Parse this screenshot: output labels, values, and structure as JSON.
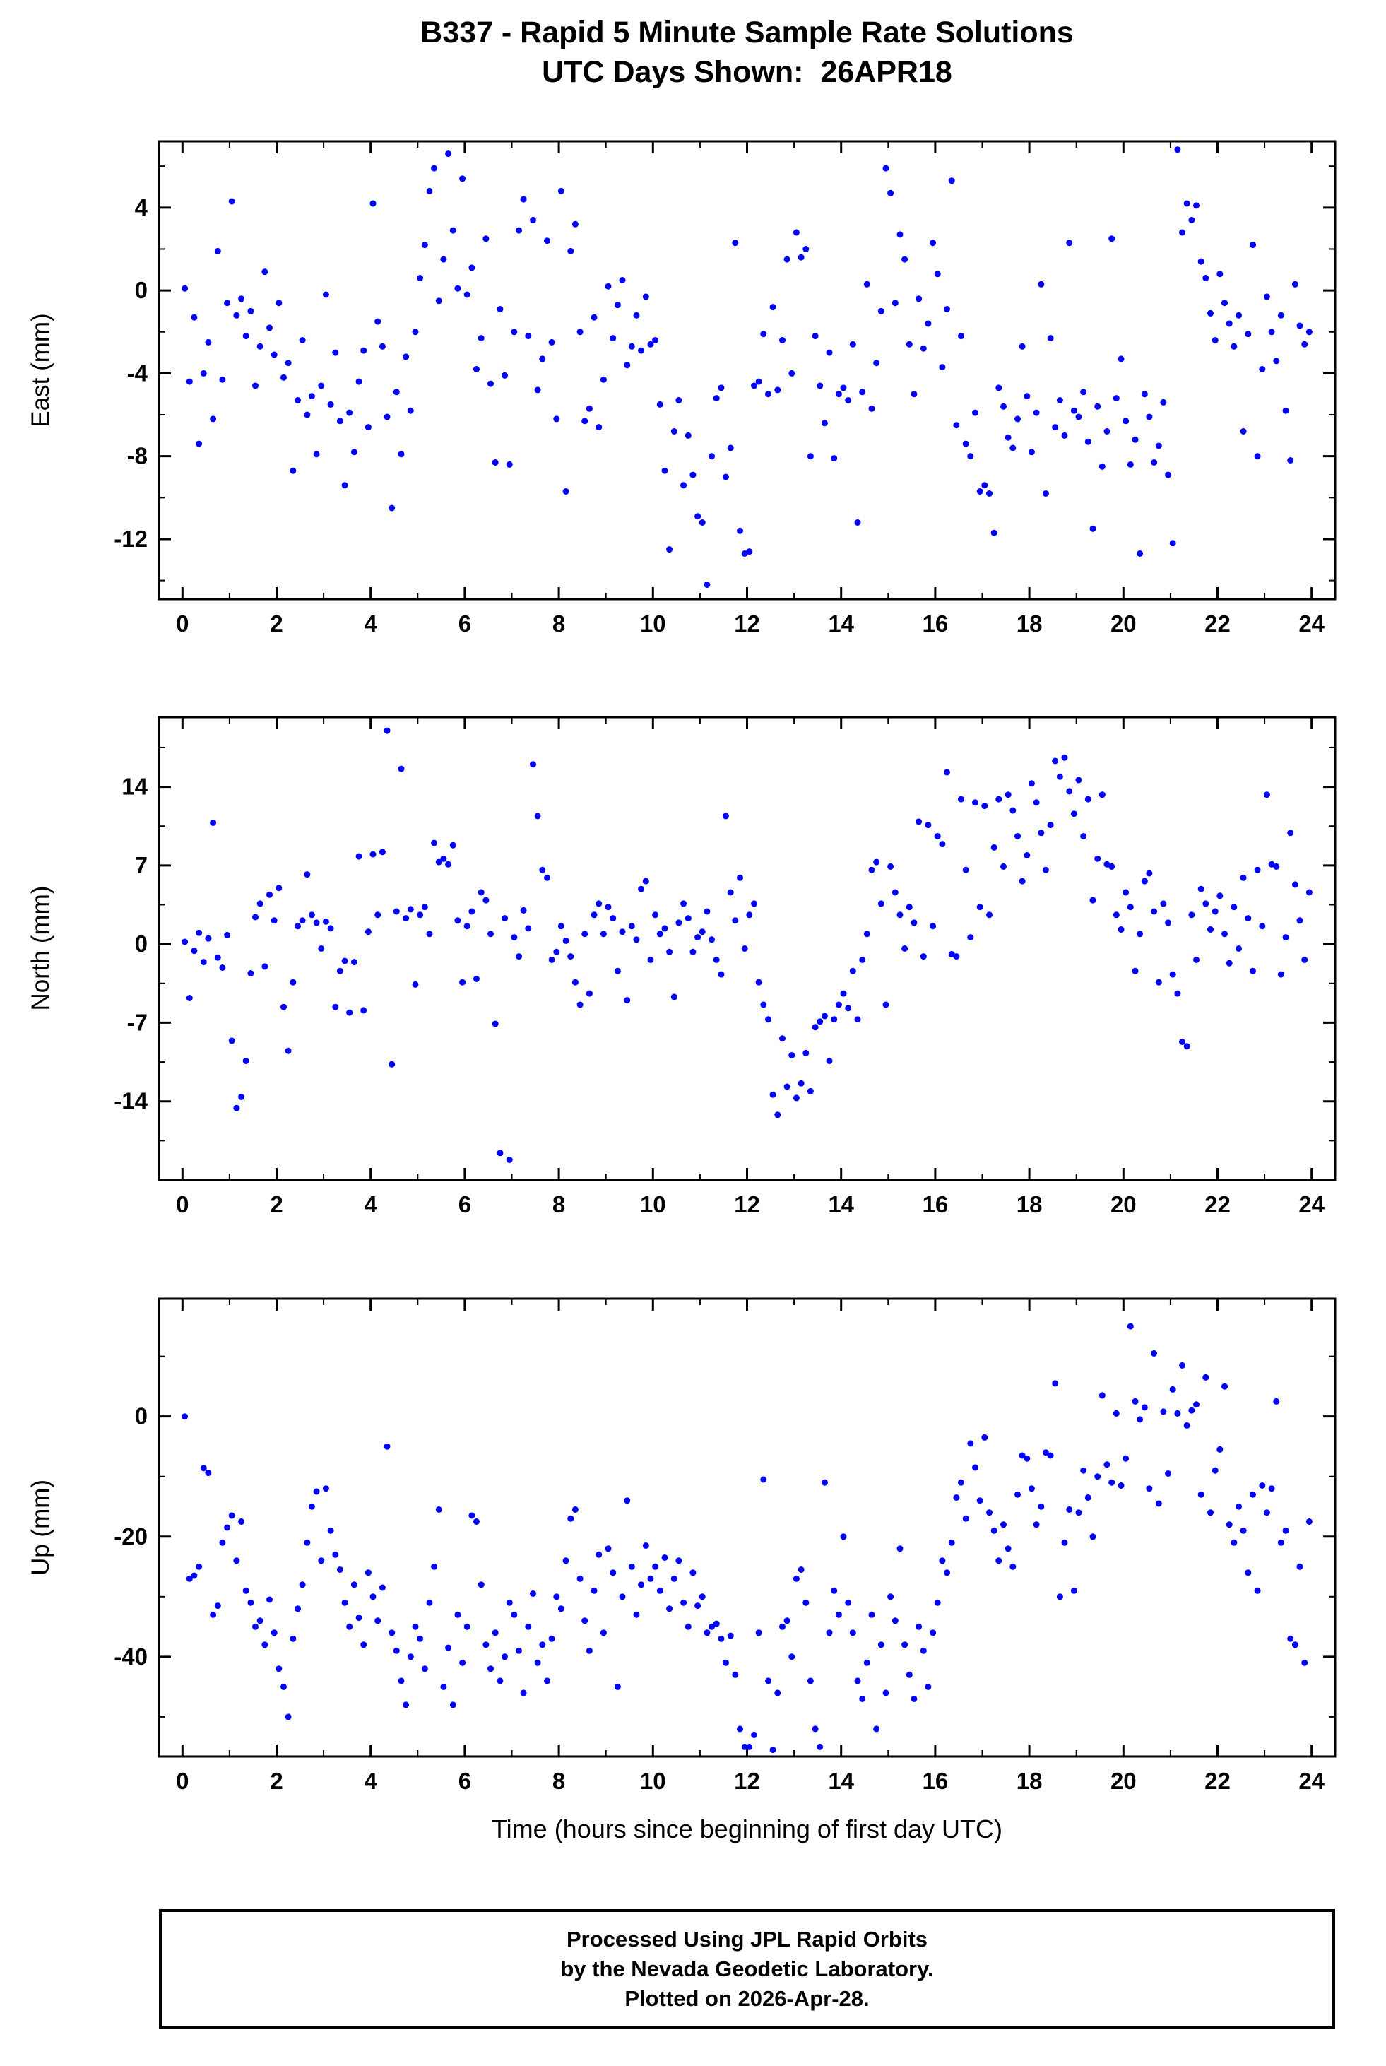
{
  "title": "B337 - Rapid 5 Minute Sample Rate Solutions",
  "subtitle": "UTC Days Shown:  26APR18",
  "footer": {
    "lines": [
      "Processed Using JPL Rapid Orbits",
      "by the Nevada Geodetic Laboratory.",
      "Plotted on 2026-Apr-28."
    ]
  },
  "chart_data": {
    "type": "scatter",
    "title": "B337 - Rapid 5 Minute Sample Rate Solutions",
    "subtitle": "UTC Days Shown:  26APR18",
    "xlabel": "Time (hours since beginning of first day UTC)",
    "xlim": [
      -0.5,
      24.5
    ],
    "xticks": [
      0,
      2,
      4,
      6,
      8,
      10,
      12,
      14,
      16,
      18,
      20,
      22,
      24
    ],
    "x_minor": 1,
    "grid": false,
    "legend": "none",
    "point_color": "#0000ff",
    "frame_color": "#000000",
    "panels": [
      {
        "ylabel": "East (mm)",
        "ylim": [
          -14.9,
          7.2
        ],
        "yticks": [
          4,
          0,
          -4,
          -8,
          -12
        ],
        "minor": 2
      },
      {
        "ylabel": "North (mm)",
        "ylim": [
          -21.0,
          20.2
        ],
        "yticks": [
          14,
          7,
          0,
          -7,
          -14
        ],
        "minor": 3.5
      },
      {
        "ylabel": "Up (mm)",
        "ylim": [
          -56.6,
          19.6
        ],
        "yticks": [
          0,
          -20,
          -40
        ],
        "minor": 10
      }
    ],
    "points_format": [
      "time_hours",
      "east_mm",
      "north_mm",
      "up_mm"
    ],
    "points": [
      [
        0.05,
        0.1,
        0.2,
        0.0
      ],
      [
        0.15,
        -4.4,
        -4.8,
        -27
      ],
      [
        0.25,
        -1.3,
        -0.6,
        -26.5
      ],
      [
        0.35,
        -7.4,
        1.0,
        -25
      ],
      [
        0.45,
        -4.0,
        -1.6,
        -8.6
      ],
      [
        0.55,
        -2.5,
        0.5,
        -9.4
      ],
      [
        0.65,
        -6.2,
        10.8,
        -33
      ],
      [
        0.75,
        1.9,
        -1.2,
        -31.5
      ],
      [
        0.85,
        -4.3,
        -2.1,
        -21
      ],
      [
        0.95,
        -0.6,
        0.8,
        -18.5
      ],
      [
        1.05,
        4.3,
        -8.6,
        -16.5
      ],
      [
        1.15,
        -1.2,
        -14.6,
        -24
      ],
      [
        1.25,
        -0.4,
        -13.6,
        -17.5
      ],
      [
        1.35,
        -2.2,
        -10.4,
        -29
      ],
      [
        1.45,
        -1.0,
        -2.6,
        -31
      ],
      [
        1.55,
        -4.6,
        2.4,
        -35
      ],
      [
        1.65,
        -2.7,
        3.6,
        -34
      ],
      [
        1.75,
        0.9,
        -2.0,
        -38
      ],
      [
        1.85,
        -1.8,
        4.4,
        -30.5
      ],
      [
        1.95,
        -3.1,
        2.1,
        -36
      ],
      [
        2.05,
        -0.6,
        5.0,
        -42
      ],
      [
        2.15,
        -4.2,
        -5.6,
        -45
      ],
      [
        2.25,
        -3.5,
        -9.5,
        -50
      ],
      [
        2.35,
        -8.7,
        -3.4,
        -37
      ],
      [
        2.45,
        -5.3,
        1.6,
        -32
      ],
      [
        2.55,
        -2.4,
        2.1,
        -28
      ],
      [
        2.65,
        -6.0,
        6.2,
        -21
      ],
      [
        2.75,
        -5.1,
        2.6,
        -15
      ],
      [
        2.85,
        -7.9,
        1.9,
        -12.5
      ],
      [
        2.95,
        -4.6,
        -0.4,
        -24
      ],
      [
        3.05,
        -0.2,
        2.0,
        -12
      ],
      [
        3.15,
        -5.5,
        1.4,
        -19
      ],
      [
        3.25,
        -3.0,
        -5.6,
        -23
      ],
      [
        3.35,
        -6.3,
        -2.4,
        -25.5
      ],
      [
        3.45,
        -9.4,
        -1.5,
        -31
      ],
      [
        3.55,
        -5.9,
        -6.1,
        -35
      ],
      [
        3.65,
        -7.8,
        -1.6,
        -28
      ],
      [
        3.75,
        -4.4,
        7.8,
        -33.5
      ],
      [
        3.85,
        -2.9,
        -5.9,
        -38
      ],
      [
        3.95,
        -6.6,
        1.1,
        -26
      ],
      [
        4.05,
        4.2,
        8.0,
        -30
      ],
      [
        4.15,
        -1.5,
        2.6,
        -34
      ],
      [
        4.25,
        -2.7,
        8.2,
        -28.5
      ],
      [
        4.35,
        -6.1,
        19.0,
        -5
      ],
      [
        4.45,
        -10.5,
        -10.7,
        -36
      ],
      [
        4.55,
        -4.9,
        2.9,
        -39
      ],
      [
        4.65,
        -7.9,
        15.6,
        -44
      ],
      [
        4.75,
        -3.2,
        2.3,
        -48
      ],
      [
        4.85,
        -5.8,
        3.1,
        -40
      ],
      [
        4.95,
        -2.0,
        -3.6,
        -35
      ],
      [
        5.05,
        0.6,
        2.6,
        -37
      ],
      [
        5.15,
        2.2,
        3.3,
        -42
      ],
      [
        5.25,
        4.8,
        0.9,
        -31
      ],
      [
        5.35,
        5.9,
        9.0,
        -25
      ],
      [
        5.45,
        -0.5,
        7.3,
        -15.5
      ],
      [
        5.55,
        1.5,
        7.6,
        -45
      ],
      [
        5.65,
        6.6,
        7.1,
        -38.5
      ],
      [
        5.75,
        2.9,
        8.8,
        -48
      ],
      [
        5.85,
        0.1,
        2.1,
        -33
      ],
      [
        5.95,
        5.4,
        -3.4,
        -41
      ],
      [
        6.05,
        -0.2,
        1.6,
        -35
      ],
      [
        6.15,
        1.1,
        2.9,
        -16.5
      ],
      [
        6.25,
        -3.8,
        -3.1,
        -17.5
      ],
      [
        6.35,
        -2.3,
        4.6,
        -28
      ],
      [
        6.45,
        2.5,
        3.9,
        -38
      ],
      [
        6.55,
        -4.5,
        0.9,
        -42
      ],
      [
        6.65,
        -8.3,
        -7.1,
        -36
      ],
      [
        6.75,
        -0.9,
        -18.6,
        -44
      ],
      [
        6.85,
        -4.1,
        2.3,
        -40
      ],
      [
        6.95,
        -8.4,
        -19.2,
        -31
      ],
      [
        7.05,
        -2.0,
        0.6,
        -33
      ],
      [
        7.15,
        2.9,
        -1.1,
        -39
      ],
      [
        7.25,
        4.4,
        3.0,
        -46
      ],
      [
        7.35,
        -2.2,
        1.4,
        -35
      ],
      [
        7.45,
        3.4,
        16.0,
        -29.5
      ],
      [
        7.55,
        -4.8,
        11.4,
        -41
      ],
      [
        7.65,
        -3.3,
        6.6,
        -38
      ],
      [
        7.75,
        2.4,
        5.9,
        -44
      ],
      [
        7.85,
        -2.5,
        -1.4,
        -37
      ],
      [
        7.95,
        -6.2,
        -0.7,
        -30
      ],
      [
        8.05,
        4.8,
        1.6,
        -32
      ],
      [
        8.15,
        -9.7,
        0.3,
        -24
      ],
      [
        8.25,
        1.9,
        -1.1,
        -17
      ],
      [
        8.35,
        3.2,
        -3.4,
        -15.5
      ],
      [
        8.45,
        -2.0,
        -5.4,
        -27
      ],
      [
        8.55,
        -6.3,
        0.9,
        -34
      ],
      [
        8.65,
        -5.7,
        -4.4,
        -39
      ],
      [
        8.75,
        -1.3,
        2.6,
        -29
      ],
      [
        8.85,
        -6.6,
        3.6,
        -23
      ],
      [
        8.95,
        -4.3,
        0.9,
        -36
      ],
      [
        9.05,
        0.2,
        3.3,
        -22
      ],
      [
        9.15,
        -2.3,
        2.3,
        -26
      ],
      [
        9.25,
        -0.7,
        -2.4,
        -45
      ],
      [
        9.35,
        0.5,
        1.1,
        -30
      ],
      [
        9.45,
        -3.6,
        -5.0,
        -14
      ],
      [
        9.55,
        -2.7,
        1.6,
        -25
      ],
      [
        9.65,
        -1.2,
        0.4,
        -33
      ],
      [
        9.75,
        -2.9,
        4.9,
        -28
      ],
      [
        9.85,
        -0.3,
        5.6,
        -21.5
      ],
      [
        9.95,
        -2.6,
        -1.4,
        -27
      ],
      [
        10.05,
        -2.4,
        2.6,
        -25
      ],
      [
        10.15,
        -5.5,
        0.9,
        -29
      ],
      [
        10.25,
        -8.7,
        1.4,
        -23.5
      ],
      [
        10.35,
        -12.5,
        -0.7,
        -32
      ],
      [
        10.45,
        -6.8,
        -4.7,
        -27
      ],
      [
        10.55,
        -5.3,
        1.9,
        -24
      ],
      [
        10.65,
        -9.4,
        3.6,
        -31
      ],
      [
        10.75,
        -7.0,
        2.3,
        -35
      ],
      [
        10.85,
        -8.9,
        -0.7,
        -26
      ],
      [
        10.95,
        -10.9,
        0.6,
        -31.5
      ],
      [
        11.05,
        -11.2,
        1.1,
        -30
      ],
      [
        11.15,
        -14.2,
        2.9,
        -36
      ],
      [
        11.25,
        -8.0,
        0.4,
        -35
      ],
      [
        11.35,
        -5.2,
        -1.4,
        -34.5
      ],
      [
        11.45,
        -4.7,
        -2.7,
        -37
      ],
      [
        11.55,
        -9.0,
        11.4,
        -41
      ],
      [
        11.65,
        -7.6,
        4.6,
        -36.5
      ],
      [
        11.75,
        2.3,
        2.1,
        -43
      ],
      [
        11.85,
        -11.6,
        5.9,
        -52
      ],
      [
        11.95,
        -12.7,
        -0.4,
        -55
      ],
      [
        12.05,
        -12.6,
        2.6,
        -55
      ],
      [
        12.15,
        -4.6,
        3.6,
        -53
      ],
      [
        12.25,
        -4.4,
        -3.4,
        -36
      ],
      [
        12.35,
        -2.1,
        -5.4,
        -10.5
      ],
      [
        12.45,
        -5.0,
        -6.7,
        -44
      ],
      [
        12.55,
        -0.8,
        -13.4,
        -55.5
      ],
      [
        12.65,
        -4.8,
        -15.2,
        -46
      ],
      [
        12.75,
        -2.4,
        -8.4,
        -35
      ],
      [
        12.85,
        1.5,
        -12.7,
        -34
      ],
      [
        12.95,
        -4.0,
        -9.9,
        -40
      ],
      [
        13.05,
        2.8,
        -13.7,
        -27
      ],
      [
        13.15,
        1.6,
        -12.4,
        -25.5
      ],
      [
        13.25,
        2.0,
        -9.7,
        -31
      ],
      [
        13.35,
        -8.0,
        -13.1,
        -44
      ],
      [
        13.45,
        -2.2,
        -7.4,
        -52
      ],
      [
        13.55,
        -4.6,
        -6.9,
        -55
      ],
      [
        13.65,
        -6.4,
        -6.4,
        -11
      ],
      [
        13.75,
        -3.0,
        -10.4,
        -36
      ],
      [
        13.85,
        -8.1,
        -6.7,
        -29
      ],
      [
        13.95,
        -5.0,
        -5.4,
        -33
      ],
      [
        14.05,
        -4.7,
        -4.4,
        -20
      ],
      [
        14.15,
        -5.3,
        -5.7,
        -31
      ],
      [
        14.25,
        -2.6,
        -2.4,
        -36
      ],
      [
        14.35,
        -11.2,
        -6.7,
        -44
      ],
      [
        14.45,
        -4.9,
        -1.4,
        -47
      ],
      [
        14.55,
        0.3,
        0.9,
        -41
      ],
      [
        14.65,
        -5.7,
        6.6,
        -33
      ],
      [
        14.75,
        -3.5,
        7.3,
        -52
      ],
      [
        14.85,
        -1.0,
        3.6,
        -38
      ],
      [
        14.95,
        5.9,
        -5.4,
        -46
      ],
      [
        15.05,
        4.7,
        6.9,
        -30
      ],
      [
        15.15,
        -0.6,
        4.6,
        -34
      ],
      [
        15.25,
        2.7,
        2.6,
        -22
      ],
      [
        15.35,
        1.5,
        -0.4,
        -38
      ],
      [
        15.45,
        -2.6,
        3.3,
        -43
      ],
      [
        15.55,
        -5.0,
        1.9,
        -47
      ],
      [
        15.65,
        -0.4,
        10.9,
        -35
      ],
      [
        15.75,
        -2.8,
        -1.1,
        -39
      ],
      [
        15.85,
        -1.6,
        10.6,
        -45
      ],
      [
        15.95,
        2.3,
        1.6,
        -36
      ],
      [
        16.05,
        0.8,
        9.6,
        -31
      ],
      [
        16.15,
        -3.7,
        8.9,
        -24
      ],
      [
        16.25,
        -0.9,
        15.3,
        -26
      ],
      [
        16.35,
        5.3,
        -0.9,
        -21
      ],
      [
        16.45,
        -6.5,
        -1.1,
        -13.5
      ],
      [
        16.55,
        -2.2,
        12.9,
        -11
      ],
      [
        16.65,
        -7.4,
        6.6,
        -17
      ],
      [
        16.75,
        -8.0,
        0.6,
        -4.5
      ],
      [
        16.85,
        -5.9,
        12.6,
        -8.5
      ],
      [
        16.95,
        -9.7,
        3.3,
        -14
      ],
      [
        17.05,
        -9.4,
        12.3,
        -3.5
      ],
      [
        17.15,
        -9.8,
        2.6,
        -16
      ],
      [
        17.25,
        -11.7,
        8.6,
        -19
      ],
      [
        17.35,
        -4.7,
        12.9,
        -24
      ],
      [
        17.45,
        -5.6,
        6.9,
        -18
      ],
      [
        17.55,
        -7.1,
        13.3,
        -22
      ],
      [
        17.65,
        -7.6,
        11.9,
        -25
      ],
      [
        17.75,
        -6.2,
        9.6,
        -13
      ],
      [
        17.85,
        -2.7,
        5.6,
        -6.5
      ],
      [
        17.95,
        -5.1,
        7.9,
        -7
      ],
      [
        18.05,
        -7.8,
        14.3,
        -12
      ],
      [
        18.15,
        -5.9,
        12.6,
        -18
      ],
      [
        18.25,
        0.3,
        9.9,
        -15
      ],
      [
        18.35,
        -9.8,
        6.6,
        -6
      ],
      [
        18.45,
        -2.3,
        10.6,
        -6.5
      ],
      [
        18.55,
        -6.6,
        16.3,
        5.5
      ],
      [
        18.65,
        -5.3,
        14.9,
        -30
      ],
      [
        18.75,
        -7.0,
        16.6,
        -21
      ],
      [
        18.85,
        2.3,
        13.6,
        -15.5
      ],
      [
        18.95,
        -5.8,
        11.6,
        -29
      ],
      [
        19.05,
        -6.1,
        14.6,
        -16
      ],
      [
        19.15,
        -4.9,
        9.6,
        -9
      ],
      [
        19.25,
        -7.3,
        12.9,
        -13.5
      ],
      [
        19.35,
        -11.5,
        3.9,
        -20
      ],
      [
        19.45,
        -5.6,
        7.6,
        -10
      ],
      [
        19.55,
        -8.5,
        13.3,
        3.5
      ],
      [
        19.65,
        -6.8,
        7.1,
        -8
      ],
      [
        19.75,
        2.5,
        6.9,
        -11
      ],
      [
        19.85,
        -5.2,
        2.6,
        0.5
      ],
      [
        19.95,
        -3.3,
        1.3,
        -11.5
      ],
      [
        20.05,
        -6.3,
        4.6,
        -7
      ],
      [
        20.15,
        -8.4,
        3.3,
        15
      ],
      [
        20.25,
        -7.2,
        -2.4,
        2.5
      ],
      [
        20.35,
        -12.7,
        0.9,
        -0.5
      ],
      [
        20.45,
        -5.0,
        5.6,
        1.5
      ],
      [
        20.55,
        -6.1,
        6.3,
        -12
      ],
      [
        20.65,
        -8.3,
        2.9,
        10.5
      ],
      [
        20.75,
        -7.5,
        -3.4,
        -14.5
      ],
      [
        20.85,
        -5.4,
        3.6,
        0.8
      ],
      [
        20.95,
        -8.9,
        1.9,
        -9.5
      ],
      [
        21.05,
        -12.2,
        -2.7,
        4.5
      ],
      [
        21.15,
        6.8,
        -4.4,
        0.5
      ],
      [
        21.25,
        2.8,
        -8.7,
        8.5
      ],
      [
        21.35,
        4.2,
        -9.1,
        -1.5
      ],
      [
        21.45,
        3.4,
        2.6,
        1.0
      ],
      [
        21.55,
        4.1,
        -1.4,
        2.0
      ],
      [
        21.65,
        1.4,
        4.9,
        -13
      ],
      [
        21.75,
        0.6,
        3.6,
        6.5
      ],
      [
        21.85,
        -1.1,
        1.3,
        -16
      ],
      [
        21.95,
        -2.4,
        2.9,
        -9
      ],
      [
        22.05,
        0.8,
        4.3,
        -5.5
      ],
      [
        22.15,
        -0.6,
        0.9,
        5.0
      ],
      [
        22.25,
        -1.6,
        -1.7,
        -18
      ],
      [
        22.35,
        -2.7,
        3.3,
        -21
      ],
      [
        22.45,
        -1.2,
        -0.4,
        -15
      ],
      [
        22.55,
        -6.8,
        5.9,
        -19
      ],
      [
        22.65,
        -2.1,
        2.3,
        -26
      ],
      [
        22.75,
        2.2,
        -2.4,
        -13
      ],
      [
        22.85,
        -8.0,
        6.6,
        -29
      ],
      [
        22.95,
        -3.8,
        1.6,
        -11.5
      ],
      [
        23.05,
        -0.3,
        13.3,
        -16
      ],
      [
        23.15,
        -2.0,
        7.1,
        -12
      ],
      [
        23.25,
        -3.4,
        6.9,
        2.5
      ],
      [
        23.35,
        -1.2,
        -2.7,
        -21
      ],
      [
        23.45,
        -5.8,
        0.6,
        -19
      ],
      [
        23.55,
        -8.2,
        9.9,
        -37
      ],
      [
        23.65,
        0.3,
        5.3,
        -38
      ],
      [
        23.75,
        -1.7,
        2.1,
        -25
      ],
      [
        23.85,
        -2.6,
        -1.4,
        -41
      ],
      [
        23.95,
        -2.0,
        4.6,
        -17.5
      ]
    ]
  }
}
